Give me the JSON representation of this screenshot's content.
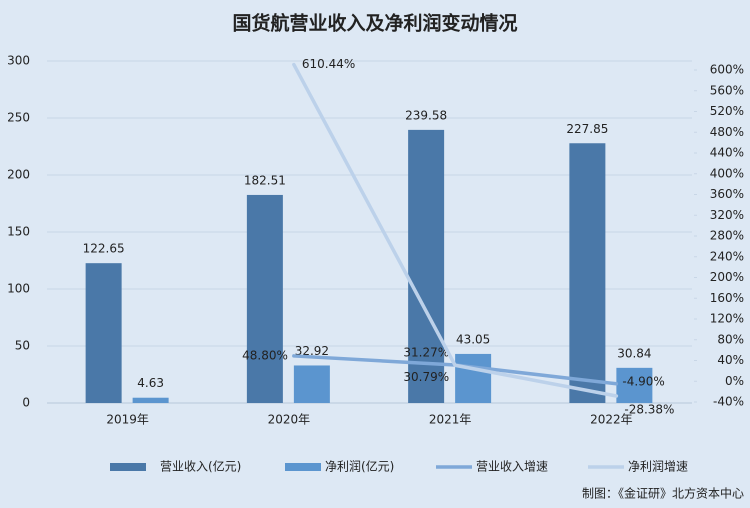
{
  "chart_data": {
    "type": "bar",
    "title": "国货航营业收入及净利润变动情况",
    "categories": [
      "2019年",
      "2020年",
      "2021年",
      "2022年"
    ],
    "series": [
      {
        "name": "营业收入(亿元)",
        "type": "bar",
        "color": "#4a78a8",
        "values": [
          122.65,
          182.51,
          239.58,
          227.85
        ]
      },
      {
        "name": "净利润(亿元)",
        "type": "bar",
        "color": "#5b95cf",
        "values": [
          4.63,
          32.92,
          43.05,
          30.84
        ]
      },
      {
        "name": "营业收入增速",
        "type": "line",
        "axis": "y2",
        "color": "#7fa8d8",
        "values": [
          null,
          48.8,
          31.27,
          -4.9
        ],
        "value_labels": [
          null,
          "48.80%",
          "31.27%",
          "-4.90%"
        ]
      },
      {
        "name": "净利润增速",
        "type": "line",
        "axis": "y2",
        "color": "#bcd1ea",
        "values": [
          null,
          610.44,
          30.79,
          -28.38
        ],
        "value_labels": [
          null,
          "610.44%",
          "30.79%",
          "-28.38%"
        ]
      }
    ],
    "ylim": [
      0,
      300
    ],
    "yticks": [
      0,
      50,
      100,
      150,
      200,
      250,
      300
    ],
    "y2lim": [
      -40,
      600
    ],
    "y2ticks": [
      {
        "value": -40,
        "label": "-40%"
      },
      {
        "value": 0,
        "label": "0%"
      },
      {
        "value": 40,
        "label": "40%"
      },
      {
        "value": 80,
        "label": "80%"
      },
      {
        "value": 120,
        "label": "120%"
      },
      {
        "value": 160,
        "label": "160%"
      },
      {
        "value": 200,
        "label": "200%"
      },
      {
        "value": 240,
        "label": "240%"
      },
      {
        "value": 280,
        "label": "280%"
      },
      {
        "value": 320,
        "label": "320%"
      },
      {
        "value": 360,
        "label": "360%"
      },
      {
        "value": 400,
        "label": "400%"
      },
      {
        "value": 440,
        "label": "440%"
      },
      {
        "value": 480,
        "label": "480%"
      },
      {
        "value": 520,
        "label": "520%"
      },
      {
        "value": 560,
        "label": "560%"
      },
      {
        "value": 600,
        "label": "600%"
      }
    ],
    "grid": true,
    "source": "制图：《金证研》北方资本中心"
  }
}
